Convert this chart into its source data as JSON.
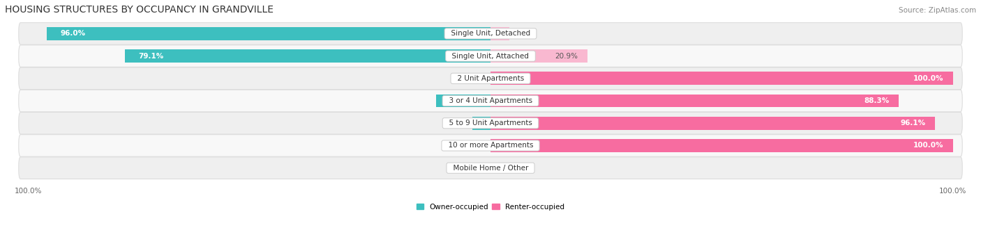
{
  "title": "HOUSING STRUCTURES BY OCCUPANCY IN GRANDVILLE",
  "source": "Source: ZipAtlas.com",
  "categories": [
    "Single Unit, Detached",
    "Single Unit, Attached",
    "2 Unit Apartments",
    "3 or 4 Unit Apartments",
    "5 to 9 Unit Apartments",
    "10 or more Apartments",
    "Mobile Home / Other"
  ],
  "owner_pct": [
    96.0,
    79.1,
    0.0,
    11.7,
    3.9,
    0.0,
    0.0
  ],
  "renter_pct": [
    4.0,
    20.9,
    100.0,
    88.3,
    96.1,
    100.0,
    0.0
  ],
  "owner_color": "#3DBFBF",
  "renter_color": "#F76CA0",
  "owner_color_light": "#A8DEDE",
  "renter_color_light": "#F9B8D0",
  "row_bg_color_odd": "#EFEFEF",
  "row_bg_color_even": "#F8F8F8",
  "row_border_color": "#DDDDDD",
  "label_box_color": "#FFFFFF",
  "title_fontsize": 10,
  "source_fontsize": 7.5,
  "bar_label_fontsize": 7.5,
  "cat_label_fontsize": 7.5,
  "tick_fontsize": 7.5,
  "bar_height": 0.58,
  "figsize": [
    14.06,
    3.41
  ],
  "dpi": 100,
  "total_width": 100
}
